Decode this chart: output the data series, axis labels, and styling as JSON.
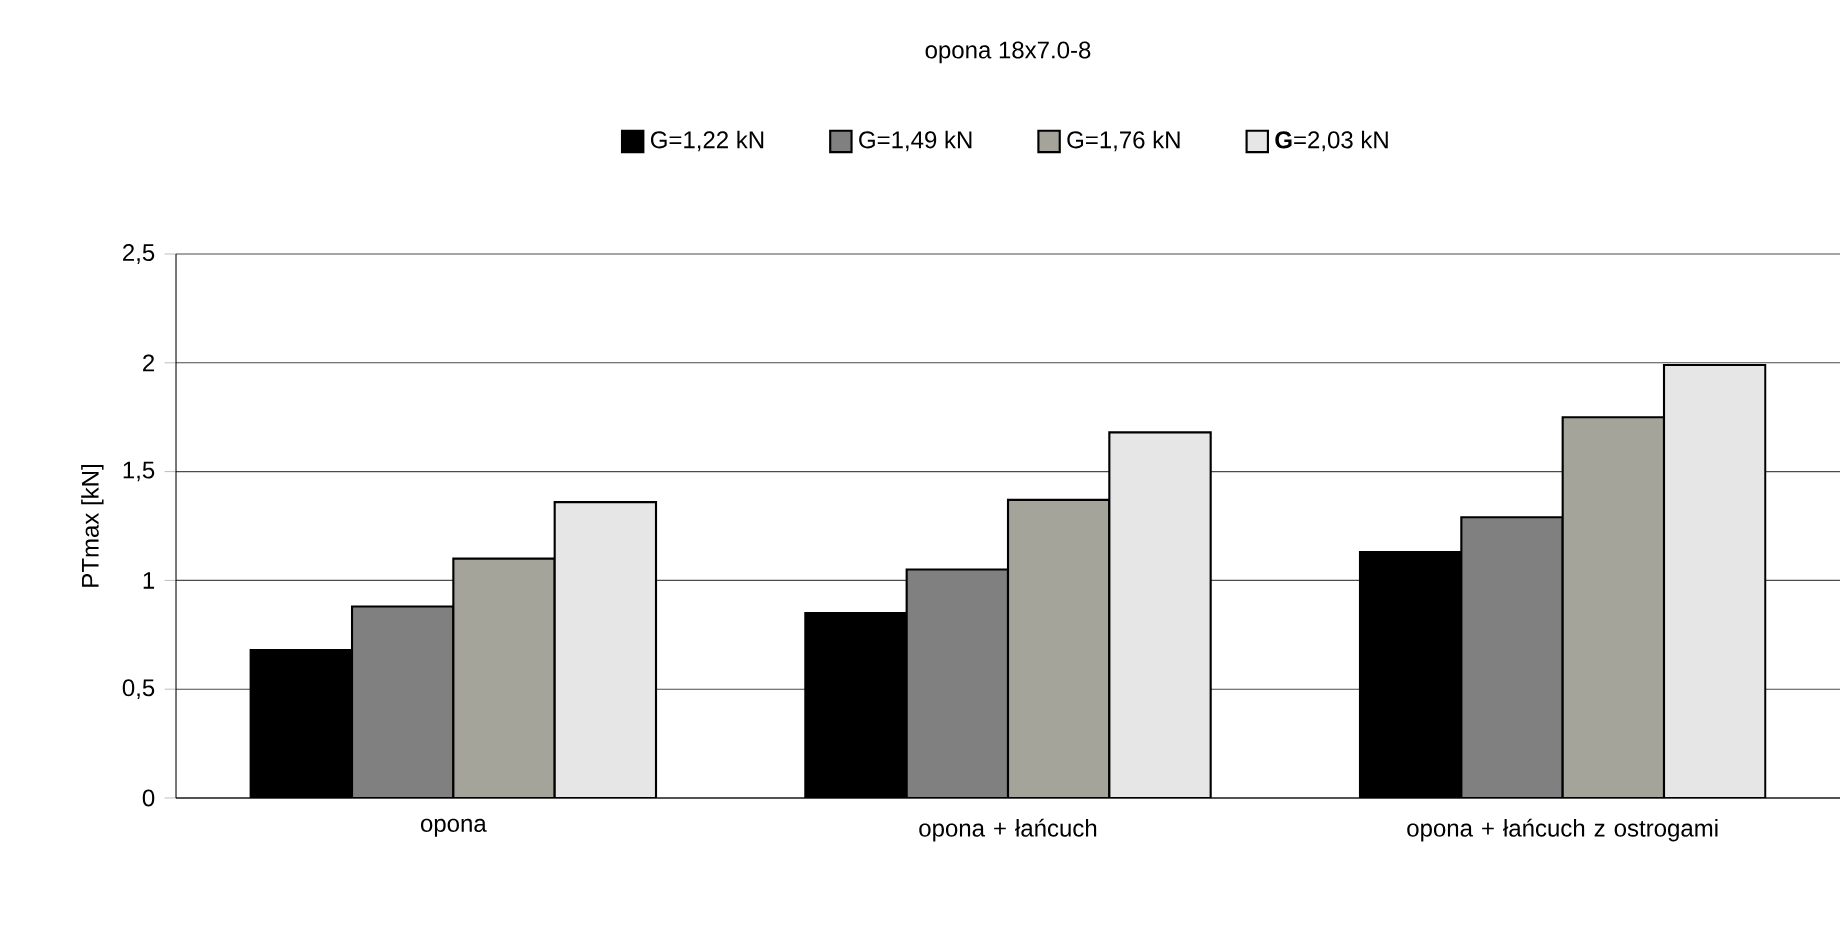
{
  "chart_data": {
    "type": "bar",
    "title": "opona 18x7.0-8",
    "ylabel": "PTmax [kN]",
    "categories": [
      "opona",
      "opona + łańcuch",
      "opona  + łańcuch z ostrogami"
    ],
    "series": [
      {
        "name": "G=1,22 kN",
        "color": "#000000",
        "values": [
          0.68,
          0.85,
          1.13
        ]
      },
      {
        "name": "G=1,49 kN",
        "color": "#808080",
        "values": [
          0.88,
          1.05,
          1.29
        ]
      },
      {
        "name": "G=1,76 kN",
        "color": "#a4a49a",
        "values": [
          1.1,
          1.37,
          1.75
        ]
      },
      {
        "name": "**G**=2,03 kN",
        "color": "#e6e6e6",
        "values": [
          1.36,
          1.68,
          1.99
        ]
      }
    ],
    "ylim": [
      0,
      2.5
    ],
    "yticks": [
      0,
      {
        "value": 0.5,
        "label": "0,5"
      },
      1,
      {
        "value": 1.5,
        "label": "1,5"
      },
      2,
      {
        "value": 2.5,
        "label": "2,5"
      }
    ],
    "grid": "y",
    "legend": "top"
  }
}
